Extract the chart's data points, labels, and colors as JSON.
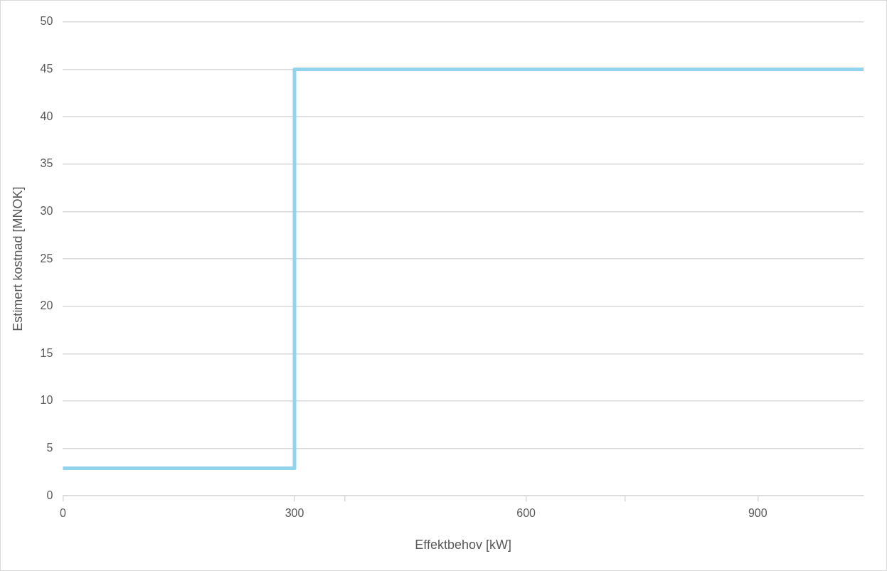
{
  "chart_data": {
    "type": "step",
    "xlabel": "Effektbehov [kW]",
    "ylabel": "Estimert kostnad [MNOK]",
    "x": [
      0,
      300,
      1037
    ],
    "series": [
      {
        "color": "#92d4ee",
        "values": [
          2.9,
          45,
          45
        ]
      }
    ],
    "xlim": [
      0,
      1037
    ],
    "xticks": [
      0,
      300,
      {
        "value": 365,
        "label": null
      },
      600,
      {
        "value": 728,
        "label": null
      },
      900
    ],
    "ylim": [
      0,
      50
    ],
    "yticks": [
      0,
      5,
      10,
      15,
      20,
      25,
      30,
      35,
      40,
      45,
      50
    ],
    "grid": "y",
    "legend": false,
    "marker": "none",
    "line_style": "solid"
  }
}
